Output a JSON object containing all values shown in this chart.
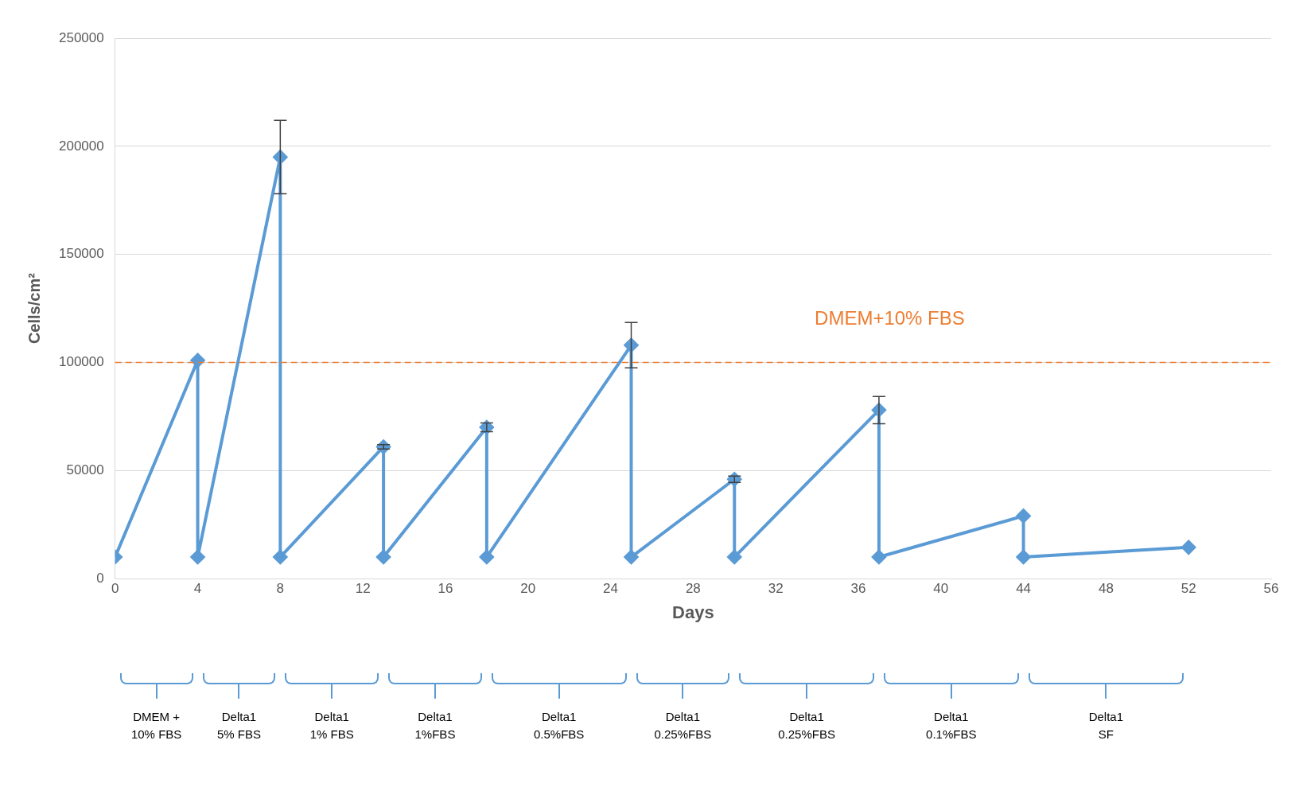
{
  "chart_data": {
    "type": "line",
    "xlabel": "Days",
    "ylabel": "Cells/cm²",
    "x": [
      0,
      4,
      4,
      8,
      8,
      13,
      13,
      18,
      18,
      25,
      25,
      30,
      30,
      37,
      37,
      44,
      44,
      52
    ],
    "series": [
      {
        "color": "#5b9bd5",
        "values": [
          10000,
          101000,
          10000,
          195000,
          10000,
          61000,
          10000,
          70000,
          10000,
          108000,
          10000,
          46000,
          10000,
          78000,
          10000,
          29000,
          10000,
          14500
        ],
        "errors": [
          null,
          null,
          null,
          17000,
          null,
          1000,
          null,
          2000,
          null,
          10500,
          null,
          1500,
          null,
          6300,
          null,
          null,
          null,
          null
        ]
      }
    ],
    "xlim": [
      0,
      56
    ],
    "xticks": [
      0,
      4,
      8,
      12,
      16,
      20,
      24,
      28,
      32,
      36,
      40,
      44,
      48,
      52,
      56
    ],
    "ylim": [
      0,
      250000
    ],
    "yticks": [
      0,
      50000,
      100000,
      150000,
      200000,
      250000
    ],
    "grid": "y",
    "legend": false,
    "marker": "diamond",
    "line_style": "solid",
    "ref_lines": [
      {
        "axis": "y",
        "value": 100000,
        "label": "DMEM+10% FBS",
        "color": "#ed7d31",
        "line_style": "dashed"
      }
    ],
    "annotations": [
      "DMEM +\n10% FBS",
      "Delta1\n5% FBS",
      "Delta1\n1% FBS",
      "Delta1\n1%FBS",
      "Delta1\n0.5%FBS",
      "Delta1\n0.25%FBS",
      "Delta1\n0.25%FBS",
      "Delta1\n0.1%FBS",
      "Delta1\nSF"
    ]
  }
}
